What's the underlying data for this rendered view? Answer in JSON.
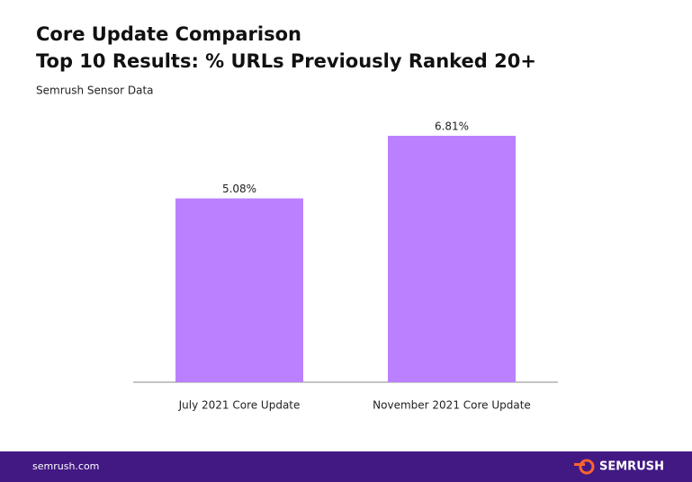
{
  "chart_data": {
    "type": "bar",
    "title": "Core Update Comparison",
    "subtitle": "Top 10 Results: % URLs Previously Ranked 20+",
    "annotation": "Semrush Sensor Data",
    "categories": [
      "July 2021 Core Update",
      "November 2021 Core Update"
    ],
    "values": [
      5.08,
      6.81
    ],
    "value_labels": [
      "5.08%",
      "6.81%"
    ],
    "color": "#bb80ff"
  },
  "footer": {
    "site": "semrush.com",
    "brand": "SEMRUSH"
  }
}
